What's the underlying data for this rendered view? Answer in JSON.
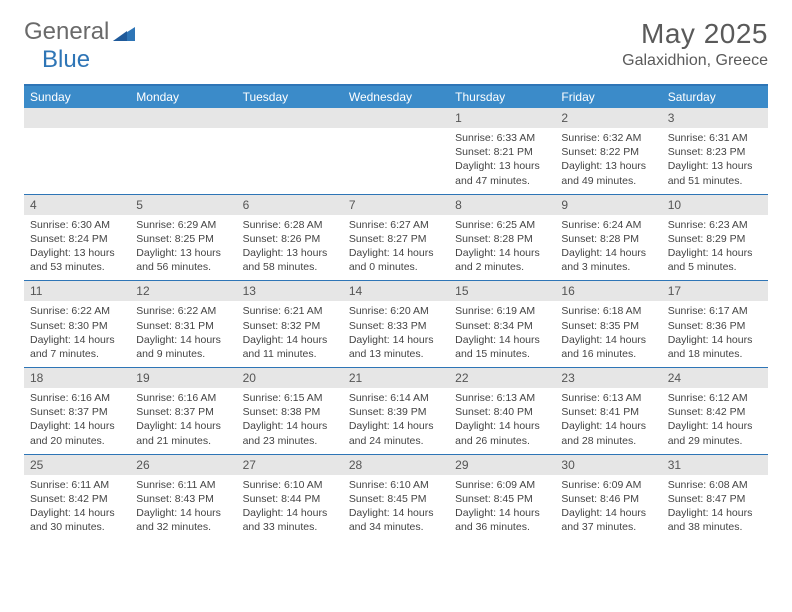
{
  "brand": {
    "part1": "General",
    "part2": "Blue"
  },
  "header": {
    "month": "May 2025",
    "location": "Galaxidhion, Greece"
  },
  "colors": {
    "accent": "#2e75b6",
    "header_bg": "#3b8bc9",
    "num_bg": "#e6e6e6",
    "text": "#444444",
    "title": "#5a5a5a"
  },
  "daynames": [
    "Sunday",
    "Monday",
    "Tuesday",
    "Wednesday",
    "Thursday",
    "Friday",
    "Saturday"
  ],
  "weeks": [
    {
      "nums": [
        "",
        "",
        "",
        "",
        "1",
        "2",
        "3"
      ],
      "cells": [
        null,
        null,
        null,
        null,
        {
          "sr": "Sunrise: 6:33 AM",
          "ss": "Sunset: 8:21 PM",
          "d1": "Daylight: 13 hours",
          "d2": "and 47 minutes."
        },
        {
          "sr": "Sunrise: 6:32 AM",
          "ss": "Sunset: 8:22 PM",
          "d1": "Daylight: 13 hours",
          "d2": "and 49 minutes."
        },
        {
          "sr": "Sunrise: 6:31 AM",
          "ss": "Sunset: 8:23 PM",
          "d1": "Daylight: 13 hours",
          "d2": "and 51 minutes."
        }
      ]
    },
    {
      "nums": [
        "4",
        "5",
        "6",
        "7",
        "8",
        "9",
        "10"
      ],
      "cells": [
        {
          "sr": "Sunrise: 6:30 AM",
          "ss": "Sunset: 8:24 PM",
          "d1": "Daylight: 13 hours",
          "d2": "and 53 minutes."
        },
        {
          "sr": "Sunrise: 6:29 AM",
          "ss": "Sunset: 8:25 PM",
          "d1": "Daylight: 13 hours",
          "d2": "and 56 minutes."
        },
        {
          "sr": "Sunrise: 6:28 AM",
          "ss": "Sunset: 8:26 PM",
          "d1": "Daylight: 13 hours",
          "d2": "and 58 minutes."
        },
        {
          "sr": "Sunrise: 6:27 AM",
          "ss": "Sunset: 8:27 PM",
          "d1": "Daylight: 14 hours",
          "d2": "and 0 minutes."
        },
        {
          "sr": "Sunrise: 6:25 AM",
          "ss": "Sunset: 8:28 PM",
          "d1": "Daylight: 14 hours",
          "d2": "and 2 minutes."
        },
        {
          "sr": "Sunrise: 6:24 AM",
          "ss": "Sunset: 8:28 PM",
          "d1": "Daylight: 14 hours",
          "d2": "and 3 minutes."
        },
        {
          "sr": "Sunrise: 6:23 AM",
          "ss": "Sunset: 8:29 PM",
          "d1": "Daylight: 14 hours",
          "d2": "and 5 minutes."
        }
      ]
    },
    {
      "nums": [
        "11",
        "12",
        "13",
        "14",
        "15",
        "16",
        "17"
      ],
      "cells": [
        {
          "sr": "Sunrise: 6:22 AM",
          "ss": "Sunset: 8:30 PM",
          "d1": "Daylight: 14 hours",
          "d2": "and 7 minutes."
        },
        {
          "sr": "Sunrise: 6:22 AM",
          "ss": "Sunset: 8:31 PM",
          "d1": "Daylight: 14 hours",
          "d2": "and 9 minutes."
        },
        {
          "sr": "Sunrise: 6:21 AM",
          "ss": "Sunset: 8:32 PM",
          "d1": "Daylight: 14 hours",
          "d2": "and 11 minutes."
        },
        {
          "sr": "Sunrise: 6:20 AM",
          "ss": "Sunset: 8:33 PM",
          "d1": "Daylight: 14 hours",
          "d2": "and 13 minutes."
        },
        {
          "sr": "Sunrise: 6:19 AM",
          "ss": "Sunset: 8:34 PM",
          "d1": "Daylight: 14 hours",
          "d2": "and 15 minutes."
        },
        {
          "sr": "Sunrise: 6:18 AM",
          "ss": "Sunset: 8:35 PM",
          "d1": "Daylight: 14 hours",
          "d2": "and 16 minutes."
        },
        {
          "sr": "Sunrise: 6:17 AM",
          "ss": "Sunset: 8:36 PM",
          "d1": "Daylight: 14 hours",
          "d2": "and 18 minutes."
        }
      ]
    },
    {
      "nums": [
        "18",
        "19",
        "20",
        "21",
        "22",
        "23",
        "24"
      ],
      "cells": [
        {
          "sr": "Sunrise: 6:16 AM",
          "ss": "Sunset: 8:37 PM",
          "d1": "Daylight: 14 hours",
          "d2": "and 20 minutes."
        },
        {
          "sr": "Sunrise: 6:16 AM",
          "ss": "Sunset: 8:37 PM",
          "d1": "Daylight: 14 hours",
          "d2": "and 21 minutes."
        },
        {
          "sr": "Sunrise: 6:15 AM",
          "ss": "Sunset: 8:38 PM",
          "d1": "Daylight: 14 hours",
          "d2": "and 23 minutes."
        },
        {
          "sr": "Sunrise: 6:14 AM",
          "ss": "Sunset: 8:39 PM",
          "d1": "Daylight: 14 hours",
          "d2": "and 24 minutes."
        },
        {
          "sr": "Sunrise: 6:13 AM",
          "ss": "Sunset: 8:40 PM",
          "d1": "Daylight: 14 hours",
          "d2": "and 26 minutes."
        },
        {
          "sr": "Sunrise: 6:13 AM",
          "ss": "Sunset: 8:41 PM",
          "d1": "Daylight: 14 hours",
          "d2": "and 28 minutes."
        },
        {
          "sr": "Sunrise: 6:12 AM",
          "ss": "Sunset: 8:42 PM",
          "d1": "Daylight: 14 hours",
          "d2": "and 29 minutes."
        }
      ]
    },
    {
      "nums": [
        "25",
        "26",
        "27",
        "28",
        "29",
        "30",
        "31"
      ],
      "cells": [
        {
          "sr": "Sunrise: 6:11 AM",
          "ss": "Sunset: 8:42 PM",
          "d1": "Daylight: 14 hours",
          "d2": "and 30 minutes."
        },
        {
          "sr": "Sunrise: 6:11 AM",
          "ss": "Sunset: 8:43 PM",
          "d1": "Daylight: 14 hours",
          "d2": "and 32 minutes."
        },
        {
          "sr": "Sunrise: 6:10 AM",
          "ss": "Sunset: 8:44 PM",
          "d1": "Daylight: 14 hours",
          "d2": "and 33 minutes."
        },
        {
          "sr": "Sunrise: 6:10 AM",
          "ss": "Sunset: 8:45 PM",
          "d1": "Daylight: 14 hours",
          "d2": "and 34 minutes."
        },
        {
          "sr": "Sunrise: 6:09 AM",
          "ss": "Sunset: 8:45 PM",
          "d1": "Daylight: 14 hours",
          "d2": "and 36 minutes."
        },
        {
          "sr": "Sunrise: 6:09 AM",
          "ss": "Sunset: 8:46 PM",
          "d1": "Daylight: 14 hours",
          "d2": "and 37 minutes."
        },
        {
          "sr": "Sunrise: 6:08 AM",
          "ss": "Sunset: 8:47 PM",
          "d1": "Daylight: 14 hours",
          "d2": "and 38 minutes."
        }
      ]
    }
  ]
}
